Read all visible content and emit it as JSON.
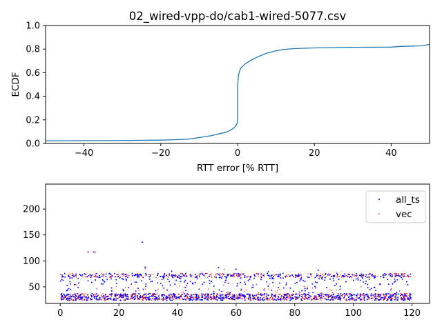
{
  "chart_data": [
    {
      "type": "line",
      "title": "02_wired-vpp-do/cab1-wired-5077.csv",
      "xlabel": "RTT error [% RTT]",
      "ylabel": "ECDF",
      "xlim": [
        -50,
        50
      ],
      "ylim": [
        0.0,
        1.0
      ],
      "xticks": [
        -40,
        -20,
        0,
        20,
        40
      ],
      "xtick_labels": [
        "−40",
        "−20",
        "0",
        "20",
        "40"
      ],
      "yticks": [
        0.0,
        0.2,
        0.4,
        0.6,
        0.8,
        1.0
      ],
      "ytick_labels": [
        "0.0",
        "0.2",
        "0.4",
        "0.6",
        "0.8",
        "1.0"
      ],
      "grid": false,
      "series": [
        {
          "color": "#1f77b4",
          "x": [
            -50,
            -40,
            -30,
            -20,
            -16,
            -13,
            -11,
            -9,
            -7,
            -5,
            -3,
            -2,
            -1,
            -0.5,
            -0.1,
            0,
            0,
            0.1,
            0.2,
            0.4,
            0.6,
            0.8,
            1,
            1.5,
            2,
            3,
            4,
            5,
            6,
            8,
            10,
            12,
            15,
            20,
            25,
            30,
            35,
            40,
            42,
            45,
            48,
            50
          ],
          "y": [
            0.022,
            0.024,
            0.025,
            0.028,
            0.032,
            0.036,
            0.045,
            0.055,
            0.065,
            0.08,
            0.095,
            0.11,
            0.13,
            0.15,
            0.17,
            0.18,
            0.5,
            0.53,
            0.57,
            0.6,
            0.62,
            0.635,
            0.645,
            0.66,
            0.675,
            0.695,
            0.715,
            0.73,
            0.745,
            0.77,
            0.785,
            0.797,
            0.805,
            0.81,
            0.813,
            0.815,
            0.816,
            0.817,
            0.822,
            0.825,
            0.828,
            0.84
          ]
        }
      ]
    },
    {
      "type": "scatter",
      "xlim": [
        -5,
        126
      ],
      "ylim": [
        18,
        248
      ],
      "xticks": [
        0,
        20,
        40,
        60,
        80,
        100,
        120
      ],
      "xtick_labels": [
        "0",
        "20",
        "40",
        "60",
        "80",
        "100",
        "120"
      ],
      "yticks": [
        50,
        100,
        150,
        200
      ],
      "ytick_labels": [
        "50",
        "100",
        "150",
        "200"
      ],
      "legend_position": "top-right",
      "grid": false,
      "series": [
        {
          "name": "all_ts",
          "color": "#0000ff",
          "marker": "dot"
        },
        {
          "name": "vec",
          "color": "#ff0000",
          "marker": "dot"
        }
      ],
      "clusters": [
        {
          "x": [
            0,
            120
          ],
          "y": [
            24,
            37
          ],
          "density": "high",
          "series": "both"
        },
        {
          "x": [
            0,
            120
          ],
          "y": [
            68,
            76
          ],
          "density": "medium",
          "series": "both"
        },
        {
          "x": [
            0,
            120
          ],
          "y": [
            55,
            68
          ],
          "density": "low",
          "series": "all_ts"
        },
        {
          "x": [
            0,
            120
          ],
          "y": [
            37,
            55
          ],
          "density": "sparse",
          "series": "both"
        }
      ],
      "outliers": {
        "all_ts": [
          [
            9.5,
            117
          ],
          [
            11.5,
            117
          ],
          [
            28,
            136
          ],
          [
            29,
            88
          ],
          [
            54,
            87
          ],
          [
            60,
            84
          ],
          [
            38,
            80
          ],
          [
            71,
            79
          ],
          [
            88,
            82
          ]
        ],
        "vec": [
          [
            9.5,
            117
          ],
          [
            12,
            117
          ],
          [
            29,
            85
          ],
          [
            56,
            84
          ]
        ]
      }
    }
  ]
}
